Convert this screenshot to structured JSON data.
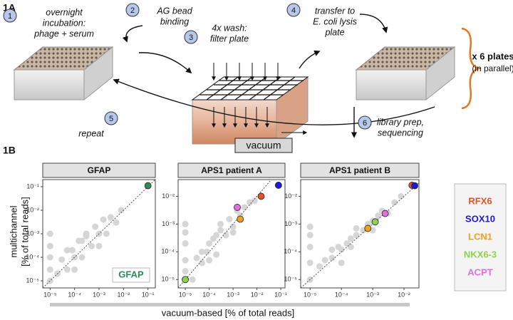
{
  "panel_labels": [
    "1A",
    "1B"
  ],
  "diagram": {
    "steps": [
      {
        "number": "1",
        "lines": [
          "overnight",
          "incubation:",
          "phage + serum"
        ]
      },
      {
        "number": "2",
        "lines": [
          "AG bead",
          "binding"
        ]
      },
      {
        "number": "3",
        "lines": [
          "4x wash:",
          "filter plate"
        ]
      },
      {
        "number": "4",
        "lines": [
          "transfer to",
          "E. coli lysis",
          "plate"
        ]
      },
      {
        "number": "5",
        "lines": [
          "repeat"
        ]
      },
      {
        "number": "6",
        "lines": [
          "library prep,",
          "sequencing"
        ]
      }
    ],
    "vacuum": "vacuum",
    "plates_note": "x 6 plates",
    "parallel_note": "(in parallel)"
  },
  "figure_1b": {
    "xlabel": "vacuum-based [% of total reads]",
    "ylabel": [
      "multichannel",
      "[% of total reads]"
    ]
  },
  "chart_data": [
    {
      "type": "scatter",
      "title": "GFAP",
      "xscale": "log",
      "yscale": "log",
      "xlim": [
        5e-06,
        0.2
      ],
      "ylim": [
        5e-06,
        0.2
      ],
      "xticks": [
        {
          "value": 1e-05,
          "label": "10⁻⁵"
        },
        {
          "value": 0.0001,
          "label": "10⁻⁴"
        },
        {
          "value": 0.001,
          "label": "10⁻³"
        },
        {
          "value": 0.01,
          "label": "10⁻²"
        },
        {
          "value": 0.1,
          "label": "10⁻¹"
        }
      ],
      "yticks": [
        {
          "value": 1e-05,
          "label": "10⁻⁵"
        },
        {
          "value": 0.0001,
          "label": "10⁻⁴"
        },
        {
          "value": 0.001,
          "label": "10⁻³"
        },
        {
          "value": 0.01,
          "label": "10⁻²"
        },
        {
          "value": 0.1,
          "label": "10⁻¹"
        }
      ],
      "background": {
        "color": "#d6d6d6",
        "x": [
          1e-05,
          1e-05,
          1e-05,
          1e-05,
          1e-05,
          2e-05,
          3e-05,
          5e-05,
          8e-05,
          0.0001,
          0.00015,
          0.0002,
          0.0003,
          0.0005,
          0.0007,
          0.001,
          0.0015,
          0.002,
          0.003,
          0.005,
          0.008,
          0.0001,
          0.0003,
          0.001,
          5e-05,
          0.0002
        ],
        "y": [
          1e-05,
          3e-05,
          0.0001,
          0.0003,
          0.001,
          2e-05,
          8e-05,
          3e-05,
          0.0002,
          0.0001,
          0.0005,
          0.0001,
          0.0008,
          0.0003,
          0.002,
          0.001,
          0.004,
          0.001,
          0.005,
          0.003,
          0.01,
          3e-05,
          0.001,
          0.0003,
          0.0002,
          0.0005
        ]
      },
      "legend": "bottom-right",
      "series": [
        {
          "name": "GFAP",
          "color": "#2e8b57",
          "x": [
            0.1
          ],
          "y": [
            0.11
          ]
        }
      ]
    },
    {
      "type": "scatter",
      "title": "APS1 patient A",
      "xscale": "log",
      "yscale": "log",
      "xlim": [
        5e-06,
        0.15
      ],
      "ylim": [
        5e-06,
        0.04
      ],
      "xticks": [
        {
          "value": 1e-05,
          "label": "10⁻⁵"
        },
        {
          "value": 0.0001,
          "label": "10⁻⁴"
        },
        {
          "value": 0.001,
          "label": "10⁻³"
        },
        {
          "value": 0.01,
          "label": "10⁻²"
        },
        {
          "value": 0.1,
          "label": "10⁻¹"
        }
      ],
      "yticks": [
        {
          "value": 1e-05,
          "label": "10⁻⁵"
        },
        {
          "value": 0.0001,
          "label": "10⁻⁴"
        },
        {
          "value": 0.001,
          "label": "10⁻³"
        },
        {
          "value": 0.01,
          "label": "10⁻²"
        }
      ],
      "background": {
        "color": "#d6d6d6",
        "x": [
          1e-05,
          1e-05,
          1e-05,
          1e-05,
          1e-05,
          2e-05,
          3e-05,
          5e-05,
          8e-05,
          0.0001,
          0.00015,
          0.0002,
          0.0003,
          0.0005,
          0.0007,
          0.001,
          0.0015,
          0.002,
          0.003,
          0.005,
          0.008,
          0.0001,
          0.0003,
          0.001,
          5e-05,
          0.0002
        ],
        "y": [
          2e-05,
          5e-05,
          0.0002,
          0.0005,
          0.001,
          1e-05,
          6e-05,
          4e-05,
          0.0001,
          0.0002,
          0.0003,
          8e-05,
          0.0006,
          0.0004,
          0.0015,
          0.0008,
          0.003,
          0.002,
          0.004,
          0.006,
          0.007,
          5e-05,
          0.001,
          0.0005,
          0.0001,
          0.0004
        ]
      },
      "series": [
        {
          "color": "#e0522a",
          "x": [
            0.015
          ],
          "y": [
            0.01
          ]
        },
        {
          "color": "#1a1adb",
          "x": [
            0.08
          ],
          "y": [
            0.025
          ]
        },
        {
          "color": "#f0a020",
          "x": [
            0.002
          ],
          "y": [
            0.0015
          ]
        },
        {
          "color": "#8fd14f",
          "x": [
            1e-05
          ],
          "y": [
            1e-05
          ]
        },
        {
          "color": "#e070e0",
          "x": [
            0.0015
          ],
          "y": [
            0.004
          ]
        }
      ]
    },
    {
      "type": "scatter",
      "title": "APS1 patient B",
      "xscale": "log",
      "yscale": "log",
      "xlim": [
        5e-06,
        0.03
      ],
      "ylim": [
        5e-06,
        0.04
      ],
      "xticks": [
        {
          "value": 1e-05,
          "label": "10⁻⁵"
        },
        {
          "value": 0.0001,
          "label": "10⁻⁴"
        },
        {
          "value": 0.001,
          "label": "10⁻³"
        },
        {
          "value": 0.01,
          "label": "10⁻²"
        }
      ],
      "yticks": [
        {
          "value": 1e-05,
          "label": "10⁻⁵"
        },
        {
          "value": 0.0001,
          "label": "10⁻⁴"
        },
        {
          "value": 0.001,
          "label": "10⁻³"
        },
        {
          "value": 0.01,
          "label": "10⁻²"
        }
      ],
      "background": {
        "color": "#d6d6d6",
        "x": [
          1e-05,
          1e-05,
          1e-05,
          1e-05,
          1e-05,
          2e-05,
          3e-05,
          5e-05,
          8e-05,
          0.0001,
          0.00015,
          0.0002,
          0.0003,
          0.0005,
          0.0007,
          0.001,
          0.0015,
          0.002,
          0.003,
          0.005,
          0.008,
          0.0001,
          0.0003,
          0.001,
          5e-05,
          0.0002
        ],
        "y": [
          1e-05,
          4e-05,
          0.00015,
          0.0004,
          0.0008,
          3e-05,
          5e-05,
          6e-05,
          0.00015,
          0.00012,
          0.0002,
          0.0003,
          0.0004,
          0.0006,
          0.001,
          0.0013,
          0.002,
          0.003,
          0.0025,
          0.006,
          0.01,
          4e-05,
          0.0007,
          0.0006,
          0.00012,
          0.00015
        ]
      },
      "legend": "right",
      "series": [
        {
          "name": "RFX6",
          "color": "#e0522a",
          "x": [
            0.018
          ],
          "y": [
            0.025
          ]
        },
        {
          "name": "SOX10",
          "color": "#1a1adb",
          "x": [
            0.022
          ],
          "y": [
            0.024
          ]
        },
        {
          "name": "LCN1",
          "color": "#f0a020",
          "x": [
            0.0007
          ],
          "y": [
            0.0007
          ]
        },
        {
          "name": "NKX6-3",
          "color": "#8fd14f",
          "x": [
            0.0012
          ],
          "y": [
            0.0012
          ]
        },
        {
          "name": "ACPT",
          "color": "#e070e0",
          "x": [
            0.0025
          ],
          "y": [
            0.0024
          ]
        }
      ]
    }
  ]
}
